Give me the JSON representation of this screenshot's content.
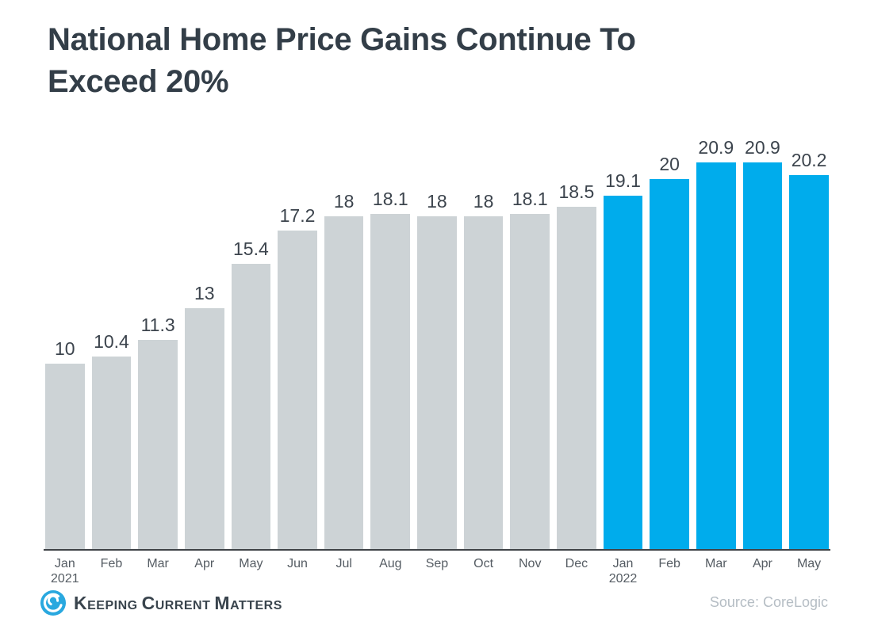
{
  "title": {
    "line1": "National Home Price Gains Continue To",
    "line2": "Exceed 20%"
  },
  "chart_data": {
    "type": "bar",
    "title": "National Home Price Gains Continue To Exceed 20%",
    "xlabel": "",
    "ylabel": "",
    "ylim": [
      0,
      21
    ],
    "grid": false,
    "legend": "none",
    "bar_colors": {
      "past": "#CDD3D6",
      "recent": "#00ACEC"
    },
    "points": [
      {
        "month": "Jan",
        "year": "2021",
        "value": 10,
        "label": "10",
        "series": "past"
      },
      {
        "month": "Feb",
        "year": "",
        "value": 10.4,
        "label": "10.4",
        "series": "past"
      },
      {
        "month": "Mar",
        "year": "",
        "value": 11.3,
        "label": "11.3",
        "series": "past"
      },
      {
        "month": "Apr",
        "year": "",
        "value": 13,
        "label": "13",
        "series": "past"
      },
      {
        "month": "May",
        "year": "",
        "value": 15.4,
        "label": "15.4",
        "series": "past"
      },
      {
        "month": "Jun",
        "year": "",
        "value": 17.2,
        "label": "17.2",
        "series": "past"
      },
      {
        "month": "Jul",
        "year": "",
        "value": 18,
        "label": "18",
        "series": "past"
      },
      {
        "month": "Aug",
        "year": "",
        "value": 18.1,
        "label": "18.1",
        "series": "past"
      },
      {
        "month": "Sep",
        "year": "",
        "value": 18,
        "label": "18",
        "series": "past"
      },
      {
        "month": "Oct",
        "year": "",
        "value": 18,
        "label": "18",
        "series": "past"
      },
      {
        "month": "Nov",
        "year": "",
        "value": 18.1,
        "label": "18.1",
        "series": "past"
      },
      {
        "month": "Dec",
        "year": "",
        "value": 18.5,
        "label": "18.5",
        "series": "past"
      },
      {
        "month": "Jan",
        "year": "2022",
        "value": 19.1,
        "label": "19.1",
        "series": "recent"
      },
      {
        "month": "Feb",
        "year": "",
        "value": 20,
        "label": "20",
        "series": "recent"
      },
      {
        "month": "Mar",
        "year": "",
        "value": 20.9,
        "label": "20.9",
        "series": "recent"
      },
      {
        "month": "Apr",
        "year": "",
        "value": 20.9,
        "label": "20.9",
        "series": "recent"
      },
      {
        "month": "May",
        "year": "",
        "value": 20.2,
        "label": "20.2",
        "series": "recent"
      }
    ]
  },
  "footer": {
    "logo_words": [
      "Keeping",
      "Current",
      "Matters"
    ],
    "logo_icon_color": "#29A8DF",
    "source": "Source: CoreLogic"
  }
}
